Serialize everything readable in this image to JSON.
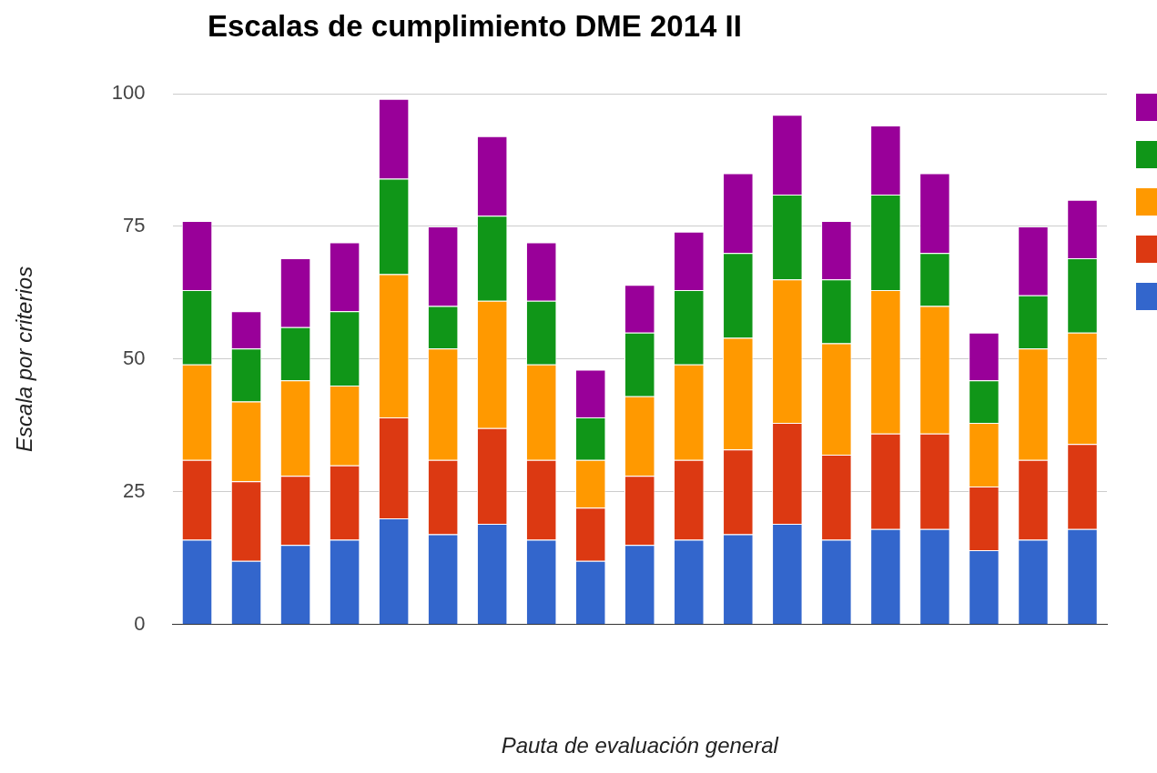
{
  "chart_data": {
    "type": "bar",
    "title": "Escalas de cumplimiento DME 2014 II",
    "xlabel": "Pauta de evaluación general",
    "ylabel": "Escala por criterios",
    "categories": [
      null,
      null,
      null,
      null,
      null,
      null,
      null,
      null,
      null,
      null,
      null,
      null,
      null,
      null,
      null,
      null,
      null,
      null,
      null
    ],
    "stacked": true,
    "ylim": [
      0,
      100
    ],
    "yticks": [
      0,
      25,
      50,
      75,
      100
    ],
    "grid": "y",
    "series": [
      {
        "color": "#3366cc",
        "values": [
          16,
          12,
          15,
          16,
          20,
          17,
          19,
          16,
          12,
          15,
          16,
          17,
          19,
          16,
          18,
          18,
          14,
          16,
          18
        ]
      },
      {
        "color": "#dc3912",
        "values": [
          15,
          15,
          13,
          14,
          19,
          14,
          18,
          15,
          10,
          13,
          15,
          16,
          19,
          16,
          18,
          18,
          12,
          15,
          16
        ]
      },
      {
        "color": "#ff9900",
        "values": [
          18,
          15,
          18,
          15,
          27,
          21,
          24,
          18,
          9,
          15,
          18,
          21,
          27,
          21,
          27,
          24,
          12,
          21,
          21
        ]
      },
      {
        "color": "#109618",
        "values": [
          14,
          10,
          10,
          14,
          18,
          8,
          16,
          12,
          8,
          12,
          14,
          16,
          16,
          12,
          18,
          10,
          8,
          10,
          14
        ]
      },
      {
        "color": "#990099",
        "values": [
          13,
          7,
          13,
          13,
          15,
          15,
          15,
          11,
          9,
          9,
          11,
          15,
          15,
          11,
          13,
          15,
          9,
          13,
          11
        ]
      }
    ]
  }
}
